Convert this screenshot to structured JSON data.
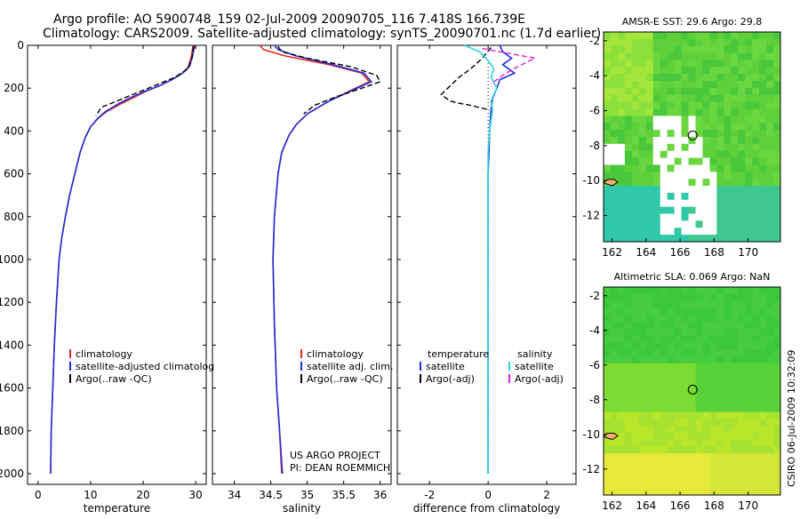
{
  "header": {
    "line1": "Argo profile: AO 5900748_159 02-Jul-2009 20090705_116 7.418S 166.739E",
    "line2": "Climatology: CARS2009. Satellite-adjusted climatology: synTS_20090701.nc (1.7d earlier)"
  },
  "credit": {
    "project": "US ARGO PROJECT",
    "pi": "PI: DEAN ROEMMICH",
    "stamp": "CSIRO 06-Jul-2009 10:32:09"
  },
  "colors": {
    "climatology": "#e8281e",
    "satellite": "#1f2fe0",
    "argo": "#000000",
    "sat_salinity": "#22d8e0",
    "argo_salinity": "#e020e0"
  },
  "chart_data": [
    {
      "id": "temperature",
      "type": "line",
      "xlabel": "temperature",
      "ylabel": "",
      "xlim": [
        -2,
        32
      ],
      "ylim": [
        2050,
        0
      ],
      "xticks": [
        0,
        10,
        20,
        30
      ],
      "yticks": [
        0,
        200,
        400,
        600,
        800,
        1000,
        1200,
        1400,
        1600,
        1800,
        2000
      ],
      "legend": [
        "climatology",
        "satellite-adjusted climatolog",
        "Argo(..raw -QC)"
      ],
      "series": [
        {
          "name": "climatology",
          "color": "#e8281e",
          "x": [
            29.5,
            29.2,
            28.6,
            27.5,
            25.5,
            23.0,
            20.5,
            18.5,
            16.0,
            13.0,
            11.5,
            10.0,
            9.0,
            8.0,
            7.0,
            6.0,
            5.2,
            4.5,
            4.0,
            3.5,
            3.1,
            2.8,
            2.5,
            2.4
          ],
          "y": [
            0,
            50,
            100,
            130,
            160,
            190,
            215,
            240,
            270,
            310,
            340,
            380,
            430,
            500,
            600,
            700,
            800,
            900,
            1000,
            1200,
            1400,
            1600,
            1800,
            2000
          ]
        },
        {
          "name": "satellite-adjusted climatolog",
          "color": "#1f2fe0",
          "x": [
            29.8,
            29.4,
            28.8,
            27.5,
            25.5,
            23.0,
            20.3,
            18.0,
            15.5,
            12.8,
            11.4,
            10.0,
            9.0,
            8.0,
            7.0,
            6.0,
            5.2,
            4.5,
            4.0,
            3.5,
            3.1,
            2.8,
            2.5,
            2.4
          ],
          "y": [
            0,
            50,
            100,
            130,
            160,
            190,
            215,
            240,
            270,
            310,
            340,
            380,
            430,
            500,
            600,
            700,
            800,
            900,
            1000,
            1200,
            1400,
            1600,
            1800,
            2000
          ]
        },
        {
          "name": "Argo(..raw -QC)",
          "color": "#000000",
          "dash": true,
          "x": [
            29.6,
            29.3,
            28.5,
            26.0,
            22.0,
            18.0,
            14.0,
            12.0,
            11.0
          ],
          "y": [
            5,
            60,
            110,
            150,
            190,
            230,
            270,
            290,
            330
          ]
        }
      ]
    },
    {
      "id": "salinity",
      "type": "line",
      "xlabel": "salinity",
      "ylabel": "",
      "xlim": [
        33.7,
        36.15
      ],
      "ylim": [
        2050,
        0
      ],
      "xticks": [
        34,
        34.5,
        35,
        35.5,
        36
      ],
      "legend": [
        "climatology",
        "satellite adj. clim.",
        "Argo(..raw -QC)"
      ],
      "series": [
        {
          "name": "climatology",
          "color": "#e8281e",
          "x": [
            34.35,
            34.4,
            34.7,
            35.3,
            35.75,
            35.85,
            35.6,
            35.3,
            35.0,
            34.85,
            34.75,
            34.65,
            34.6,
            34.55,
            34.53,
            34.55,
            34.58,
            34.62,
            34.65
          ],
          "y": [
            0,
            20,
            50,
            90,
            130,
            170,
            210,
            260,
            320,
            370,
            420,
            500,
            600,
            800,
            1000,
            1300,
            1600,
            1800,
            2000
          ]
        },
        {
          "name": "satellite adj. clim.",
          "color": "#1f2fe0",
          "x": [
            34.55,
            34.6,
            34.85,
            35.35,
            35.78,
            35.88,
            35.62,
            35.3,
            35.0,
            34.85,
            34.75,
            34.65,
            34.6,
            34.55,
            34.53,
            34.55,
            34.58,
            34.62,
            34.66
          ],
          "y": [
            0,
            20,
            50,
            90,
            130,
            170,
            210,
            260,
            320,
            370,
            420,
            500,
            600,
            800,
            1000,
            1300,
            1600,
            1800,
            2000
          ]
        },
        {
          "name": "Argo(..raw -QC)",
          "color": "#000000",
          "dash": true,
          "x": [
            34.6,
            34.65,
            35.0,
            35.6,
            35.95,
            36.0,
            35.75,
            35.4,
            35.1,
            34.95
          ],
          "y": [
            5,
            30,
            60,
            100,
            140,
            170,
            200,
            240,
            280,
            320
          ]
        }
      ]
    },
    {
      "id": "difference",
      "type": "line",
      "xlabel": "difference from climatology",
      "ylabel": "",
      "xlim": [
        -3.1,
        3.0
      ],
      "ylim": [
        2050,
        0
      ],
      "xticks": [
        -2,
        0,
        2
      ],
      "legend_left_title": "temperature",
      "legend_right_title": "salinity",
      "legend": [
        "satellite",
        "Argo(-adj)",
        "satellite",
        "Argo(-adj)"
      ],
      "series": [
        {
          "name": "satellite",
          "color": "#1f2fe0",
          "x": [
            0.4,
            0.5,
            0.8,
            0.5,
            0.9,
            0.4,
            0.3,
            0.15,
            0.1,
            0.05,
            0.03,
            0.0,
            0.0,
            0.0,
            0.0
          ],
          "y": [
            0,
            30,
            60,
            90,
            130,
            160,
            200,
            250,
            300,
            400,
            500,
            600,
            1000,
            1500,
            2000
          ]
        },
        {
          "name": "Argo(-adj)",
          "color": "#000000",
          "dash": true,
          "x": [
            0.1,
            -0.2,
            -0.6,
            -1.0,
            -1.3,
            -1.6,
            -1.3,
            -1.0,
            -0.6,
            -0.3,
            0.0
          ],
          "y": [
            10,
            60,
            110,
            150,
            190,
            230,
            260,
            270,
            280,
            290,
            300
          ]
        },
        {
          "name": "satellite",
          "color": "#22d8e0",
          "x": [
            -0.8,
            -0.3,
            0.0,
            0.2,
            0.1,
            0.3,
            0.1,
            0.15,
            0.05,
            0.0,
            0.0,
            0.0
          ],
          "y": [
            0,
            30,
            70,
            110,
            150,
            200,
            260,
            300,
            400,
            500,
            1000,
            2000
          ]
        },
        {
          "name": "Argo(-adj)",
          "color": "#e020e0",
          "dash": true,
          "x": [
            -0.2,
            0.6,
            1.6,
            1.0,
            0.5,
            0.1
          ],
          "y": [
            15,
            35,
            60,
            100,
            140,
            180
          ]
        }
      ]
    },
    {
      "id": "sst_map",
      "type": "heatmap",
      "title": "AMSR-E SST: 29.6  Argo: 29.8",
      "xlim": [
        161.5,
        171.9
      ],
      "ylim": [
        -13.5,
        -1.5
      ],
      "xticks": [
        162,
        164,
        166,
        168,
        170
      ],
      "yticks": [
        -2,
        -4,
        -6,
        -8,
        -10,
        -12
      ],
      "marker": [
        166.739,
        -7.418
      ]
    },
    {
      "id": "sla_map",
      "type": "heatmap",
      "title": "Altimetric SLA: 0.069  Argo: NaN",
      "xlim": [
        161.5,
        171.9
      ],
      "ylim": [
        -13.5,
        -1.5
      ],
      "xticks": [
        162,
        164,
        166,
        168,
        170
      ],
      "yticks": [
        -2,
        -4,
        -6,
        -8,
        -10,
        -12
      ],
      "marker": [
        166.739,
        -7.418
      ]
    }
  ]
}
